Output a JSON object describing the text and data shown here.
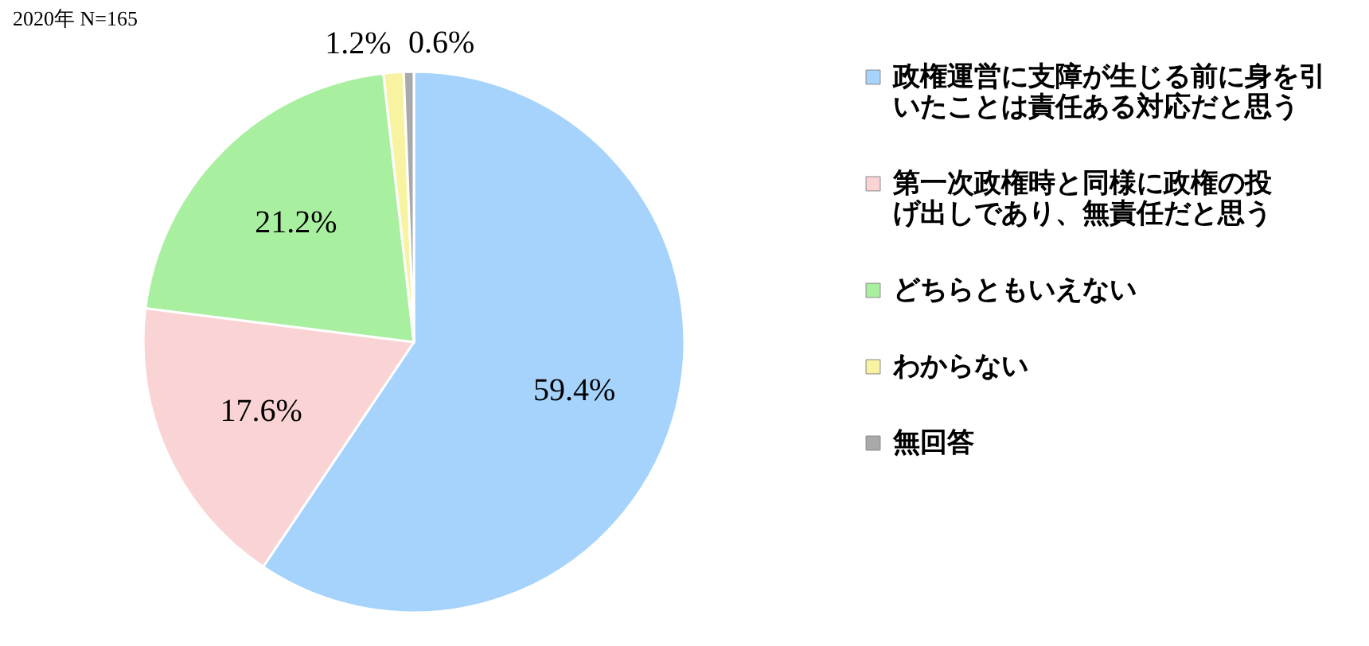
{
  "chart_data": {
    "type": "pie",
    "title": "2020年 N=165",
    "categories": [
      "政権運営に支障が生じる前に身を引いたことは責任ある対応だと思う",
      "第一次政権時と同様に政権の投げ出しであり、無責任だと思う",
      "どちらともいえない",
      "わからない",
      "無回答"
    ],
    "values": [
      59.4,
      17.6,
      21.2,
      1.2,
      0.6
    ],
    "value_labels": [
      "59.4%",
      "17.6%",
      "21.2%",
      "1.2%",
      "0.6%"
    ],
    "colors": [
      "#a6d3fb",
      "#fad4d4",
      "#a8f0a0",
      "#f7f3a0",
      "#a9a9a9"
    ],
    "legend": "right"
  }
}
